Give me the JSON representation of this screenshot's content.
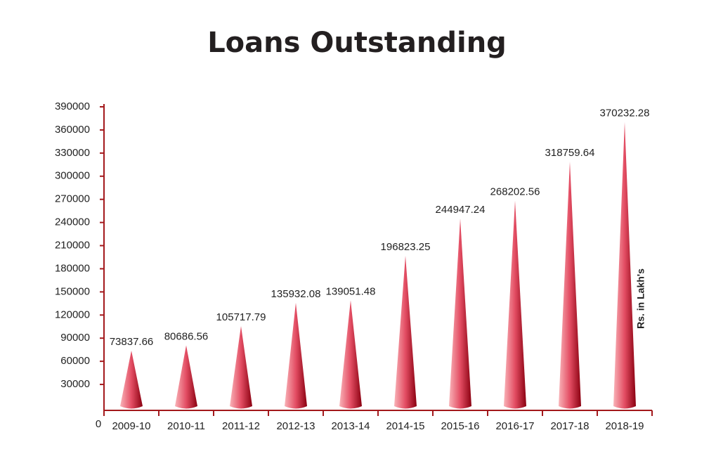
{
  "chart_data": {
    "type": "cone",
    "title": "Loans Outstanding",
    "categories": [
      "2009-10",
      "2010-11",
      "2011-12",
      "2012-13",
      "2013-14",
      "2014-15",
      "2015-16",
      "2016-17",
      "2017-18",
      "2018-19"
    ],
    "values": [
      73837.66,
      80686.56,
      105717.79,
      135932.08,
      139051.48,
      196823.25,
      244947.24,
      268202.56,
      318759.64,
      370232.28
    ],
    "color": "#e34d63",
    "ylim": [
      0,
      390000
    ],
    "yticks": [
      0,
      30000,
      60000,
      90000,
      120000,
      150000,
      180000,
      210000,
      240000,
      270000,
      300000,
      330000,
      360000,
      390000
    ],
    "annotation": "Rs. in Lakh's"
  }
}
